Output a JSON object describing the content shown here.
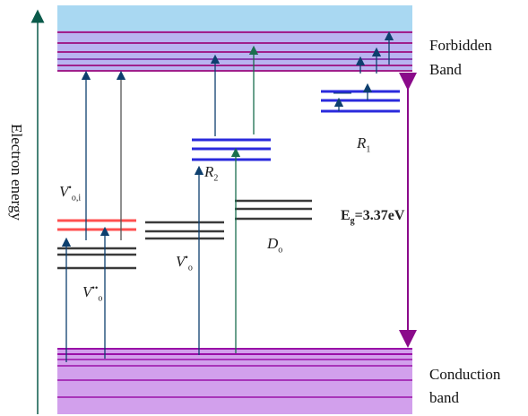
{
  "labels": {
    "axis": "Electron energy",
    "forbidden_band_line1": "Forbidden",
    "forbidden_band_line2": "Band",
    "conduction_band_line1": "Conduction",
    "conduction_band_line2": "band",
    "eg": "E",
    "eg_sub": "g",
    "eg_value": "=3.37eV"
  },
  "defect_levels": {
    "vod_base": "V",
    "vod_sup": "•",
    "vod_sub": "o,i",
    "vo2_base": "V",
    "vo2_sup": "••",
    "vo2_sub": "o",
    "vo1_base": "V",
    "vo1_sup": "•",
    "vo1_sub": "o",
    "do_base": "D",
    "do_sub": "o",
    "r2_base": "R",
    "r2_sub": "2",
    "r1_base": "R",
    "r1_sub": "1"
  },
  "colors": {
    "top_band": "#a9d8f2",
    "top_band_lines": "#a0208c",
    "bottom_band": "#d2a0ec",
    "bottom_band_lines": "#9a10a8",
    "arrow_blue": "#0d3f6e",
    "arrow_green": "#1a6e4e",
    "eg_arrow": "#8a0a8a",
    "gray_level": "#3a3a3a",
    "red_level": "#ff5050",
    "blue_level": "#2a2adc"
  }
}
